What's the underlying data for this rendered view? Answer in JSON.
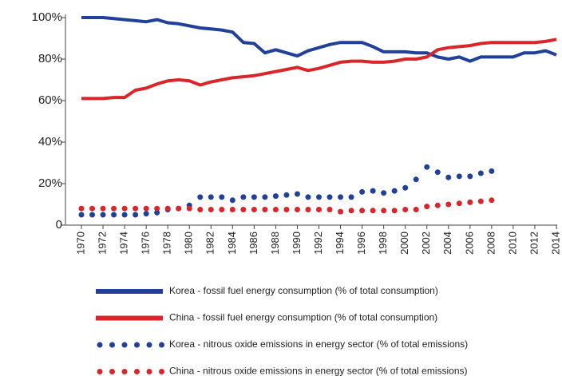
{
  "chart_data": {
    "type": "line",
    "x": [
      1970,
      1971,
      1972,
      1973,
      1974,
      1975,
      1976,
      1977,
      1978,
      1979,
      1980,
      1981,
      1982,
      1983,
      1984,
      1985,
      1986,
      1987,
      1988,
      1989,
      1990,
      1991,
      1992,
      1993,
      1994,
      1995,
      1996,
      1997,
      1998,
      1999,
      2000,
      2001,
      2002,
      2003,
      2004,
      2005,
      2006,
      2007,
      2008,
      2009,
      2010,
      2011,
      2012,
      2013,
      2014
    ],
    "xlim": [
      1970,
      2014
    ],
    "xticks": [
      1970,
      1972,
      1974,
      1976,
      1978,
      1980,
      1982,
      1984,
      1986,
      1988,
      1990,
      1992,
      1994,
      1996,
      1998,
      2000,
      2002,
      2004,
      2006,
      2008,
      2010,
      2012,
      2014
    ],
    "ylim": [
      0,
      100
    ],
    "yticks": [
      0,
      {
        "value": 20,
        "label": "20%"
      },
      {
        "value": 40,
        "label": "40%"
      },
      {
        "value": 60,
        "label": "60%"
      },
      {
        "value": 80,
        "label": "80%"
      },
      {
        "value": 100,
        "label": "100%"
      }
    ],
    "grid": false,
    "legend": "bottom",
    "series": [
      {
        "name": "Korea - fossil fuel energy consumption (% of total consumption)",
        "color": "#20409a",
        "style": "line",
        "values": [
          100,
          100,
          100,
          99.5,
          99,
          98.5,
          98,
          99,
          97.5,
          97,
          96,
          95,
          94.5,
          94,
          93,
          88,
          87.5,
          83,
          84.5,
          83,
          81.5,
          84,
          85.5,
          87,
          88,
          88,
          88,
          86,
          83.5,
          83.5,
          83.5,
          83,
          83,
          81,
          80,
          81,
          79,
          81,
          81,
          81,
          81,
          83,
          83,
          84,
          82
        ]
      },
      {
        "name": "China - fossil fuel energy consumption (% of total consumption)",
        "color": "#d9262b",
        "style": "line",
        "values": [
          61,
          61,
          61,
          61.5,
          61.5,
          65,
          66,
          68,
          69.5,
          70,
          69.5,
          67.5,
          69,
          70,
          71,
          71.5,
          72,
          73,
          74,
          75,
          76,
          74.5,
          75.5,
          77,
          78.5,
          79,
          79,
          78.5,
          78.5,
          79,
          80,
          80,
          81,
          84.5,
          85.5,
          86,
          86.5,
          87.5,
          88,
          88,
          88,
          88,
          88,
          88.5,
          89.5
        ]
      },
      {
        "name": "Korea - nitrous oxide emissions in energy sector (% of total emissions)",
        "color": "#20409a",
        "style": "dots",
        "values": [
          5,
          5,
          5,
          5,
          5,
          5,
          5.5,
          6,
          7.5,
          8,
          9.5,
          13.5,
          13.5,
          13.5,
          12,
          13.5,
          13.5,
          13.5,
          14,
          14.5,
          15,
          13.5,
          13.5,
          13.5,
          13.5,
          13.5,
          16,
          16.5,
          15.5,
          16.5,
          18,
          22,
          28,
          25.5,
          23,
          23.5,
          23.5,
          25,
          26,
          null,
          null,
          null,
          null,
          null,
          null
        ]
      },
      {
        "name": "China - nitrous oxide emissions in energy sector (% of total emissions)",
        "color": "#d9262b",
        "style": "dots",
        "values": [
          8,
          8,
          8,
          8,
          8,
          8,
          8,
          8,
          8,
          8,
          8,
          7.5,
          7.5,
          7.5,
          7.5,
          7.5,
          7.5,
          7.5,
          7.5,
          7.5,
          7.5,
          7.5,
          7.5,
          7.5,
          6.5,
          7,
          7,
          7,
          7,
          7,
          7.5,
          7.5,
          9,
          9.5,
          10,
          10.5,
          11,
          11.5,
          12,
          null,
          null,
          null,
          null,
          null,
          null
        ]
      }
    ]
  }
}
